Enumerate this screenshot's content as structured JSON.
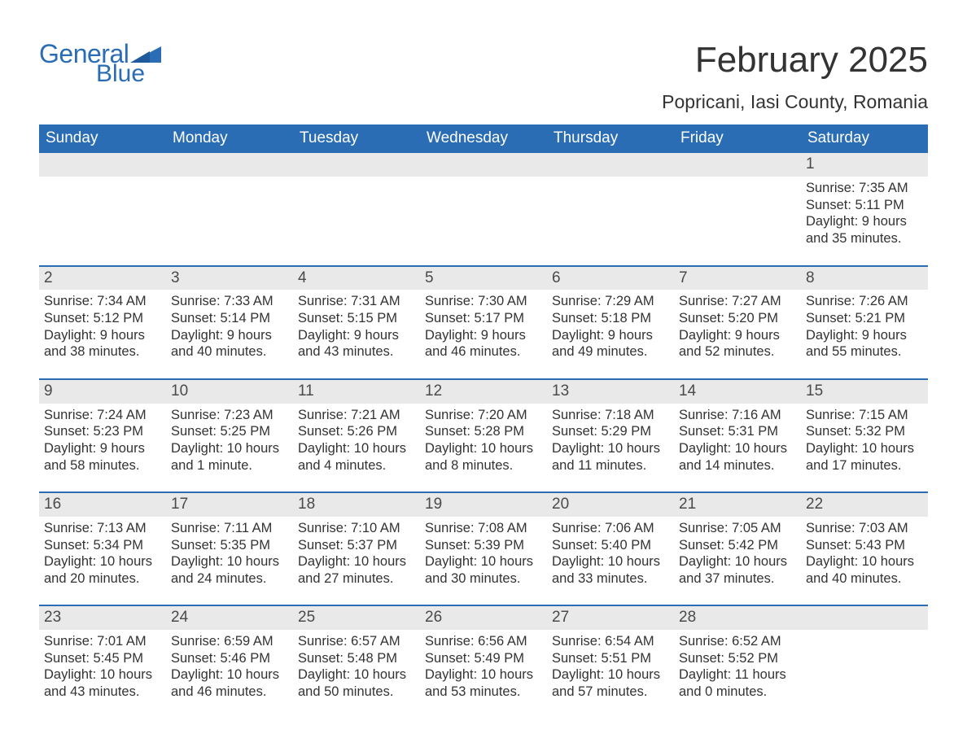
{
  "logo": {
    "general": "General",
    "blue": "Blue"
  },
  "title": "February 2025",
  "location": "Popricani, Iasi County, Romania",
  "colors": {
    "header_bg": "#2a6db5",
    "header_text": "#ffffff",
    "daynum_bg": "#e9e9e9",
    "week_border": "#2a6db5",
    "text": "#333333",
    "background": "#ffffff",
    "logo": "#2a6db5"
  },
  "weekdays": [
    "Sunday",
    "Monday",
    "Tuesday",
    "Wednesday",
    "Thursday",
    "Friday",
    "Saturday"
  ],
  "weeks": [
    [
      {
        "empty": true
      },
      {
        "empty": true
      },
      {
        "empty": true
      },
      {
        "empty": true
      },
      {
        "empty": true
      },
      {
        "empty": true
      },
      {
        "num": "1",
        "sunrise": "Sunrise: 7:35 AM",
        "sunset": "Sunset: 5:11 PM",
        "daylight": "Daylight: 9 hours and 35 minutes."
      }
    ],
    [
      {
        "num": "2",
        "sunrise": "Sunrise: 7:34 AM",
        "sunset": "Sunset: 5:12 PM",
        "daylight": "Daylight: 9 hours and 38 minutes."
      },
      {
        "num": "3",
        "sunrise": "Sunrise: 7:33 AM",
        "sunset": "Sunset: 5:14 PM",
        "daylight": "Daylight: 9 hours and 40 minutes."
      },
      {
        "num": "4",
        "sunrise": "Sunrise: 7:31 AM",
        "sunset": "Sunset: 5:15 PM",
        "daylight": "Daylight: 9 hours and 43 minutes."
      },
      {
        "num": "5",
        "sunrise": "Sunrise: 7:30 AM",
        "sunset": "Sunset: 5:17 PM",
        "daylight": "Daylight: 9 hours and 46 minutes."
      },
      {
        "num": "6",
        "sunrise": "Sunrise: 7:29 AM",
        "sunset": "Sunset: 5:18 PM",
        "daylight": "Daylight: 9 hours and 49 minutes."
      },
      {
        "num": "7",
        "sunrise": "Sunrise: 7:27 AM",
        "sunset": "Sunset: 5:20 PM",
        "daylight": "Daylight: 9 hours and 52 minutes."
      },
      {
        "num": "8",
        "sunrise": "Sunrise: 7:26 AM",
        "sunset": "Sunset: 5:21 PM",
        "daylight": "Daylight: 9 hours and 55 minutes."
      }
    ],
    [
      {
        "num": "9",
        "sunrise": "Sunrise: 7:24 AM",
        "sunset": "Sunset: 5:23 PM",
        "daylight": "Daylight: 9 hours and 58 minutes."
      },
      {
        "num": "10",
        "sunrise": "Sunrise: 7:23 AM",
        "sunset": "Sunset: 5:25 PM",
        "daylight": "Daylight: 10 hours and 1 minute."
      },
      {
        "num": "11",
        "sunrise": "Sunrise: 7:21 AM",
        "sunset": "Sunset: 5:26 PM",
        "daylight": "Daylight: 10 hours and 4 minutes."
      },
      {
        "num": "12",
        "sunrise": "Sunrise: 7:20 AM",
        "sunset": "Sunset: 5:28 PM",
        "daylight": "Daylight: 10 hours and 8 minutes."
      },
      {
        "num": "13",
        "sunrise": "Sunrise: 7:18 AM",
        "sunset": "Sunset: 5:29 PM",
        "daylight": "Daylight: 10 hours and 11 minutes."
      },
      {
        "num": "14",
        "sunrise": "Sunrise: 7:16 AM",
        "sunset": "Sunset: 5:31 PM",
        "daylight": "Daylight: 10 hours and 14 minutes."
      },
      {
        "num": "15",
        "sunrise": "Sunrise: 7:15 AM",
        "sunset": "Sunset: 5:32 PM",
        "daylight": "Daylight: 10 hours and 17 minutes."
      }
    ],
    [
      {
        "num": "16",
        "sunrise": "Sunrise: 7:13 AM",
        "sunset": "Sunset: 5:34 PM",
        "daylight": "Daylight: 10 hours and 20 minutes."
      },
      {
        "num": "17",
        "sunrise": "Sunrise: 7:11 AM",
        "sunset": "Sunset: 5:35 PM",
        "daylight": "Daylight: 10 hours and 24 minutes."
      },
      {
        "num": "18",
        "sunrise": "Sunrise: 7:10 AM",
        "sunset": "Sunset: 5:37 PM",
        "daylight": "Daylight: 10 hours and 27 minutes."
      },
      {
        "num": "19",
        "sunrise": "Sunrise: 7:08 AM",
        "sunset": "Sunset: 5:39 PM",
        "daylight": "Daylight: 10 hours and 30 minutes."
      },
      {
        "num": "20",
        "sunrise": "Sunrise: 7:06 AM",
        "sunset": "Sunset: 5:40 PM",
        "daylight": "Daylight: 10 hours and 33 minutes."
      },
      {
        "num": "21",
        "sunrise": "Sunrise: 7:05 AM",
        "sunset": "Sunset: 5:42 PM",
        "daylight": "Daylight: 10 hours and 37 minutes."
      },
      {
        "num": "22",
        "sunrise": "Sunrise: 7:03 AM",
        "sunset": "Sunset: 5:43 PM",
        "daylight": "Daylight: 10 hours and 40 minutes."
      }
    ],
    [
      {
        "num": "23",
        "sunrise": "Sunrise: 7:01 AM",
        "sunset": "Sunset: 5:45 PM",
        "daylight": "Daylight: 10 hours and 43 minutes."
      },
      {
        "num": "24",
        "sunrise": "Sunrise: 6:59 AM",
        "sunset": "Sunset: 5:46 PM",
        "daylight": "Daylight: 10 hours and 46 minutes."
      },
      {
        "num": "25",
        "sunrise": "Sunrise: 6:57 AM",
        "sunset": "Sunset: 5:48 PM",
        "daylight": "Daylight: 10 hours and 50 minutes."
      },
      {
        "num": "26",
        "sunrise": "Sunrise: 6:56 AM",
        "sunset": "Sunset: 5:49 PM",
        "daylight": "Daylight: 10 hours and 53 minutes."
      },
      {
        "num": "27",
        "sunrise": "Sunrise: 6:54 AM",
        "sunset": "Sunset: 5:51 PM",
        "daylight": "Daylight: 10 hours and 57 minutes."
      },
      {
        "num": "28",
        "sunrise": "Sunrise: 6:52 AM",
        "sunset": "Sunset: 5:52 PM",
        "daylight": "Daylight: 11 hours and 0 minutes."
      },
      {
        "empty": true
      }
    ]
  ]
}
